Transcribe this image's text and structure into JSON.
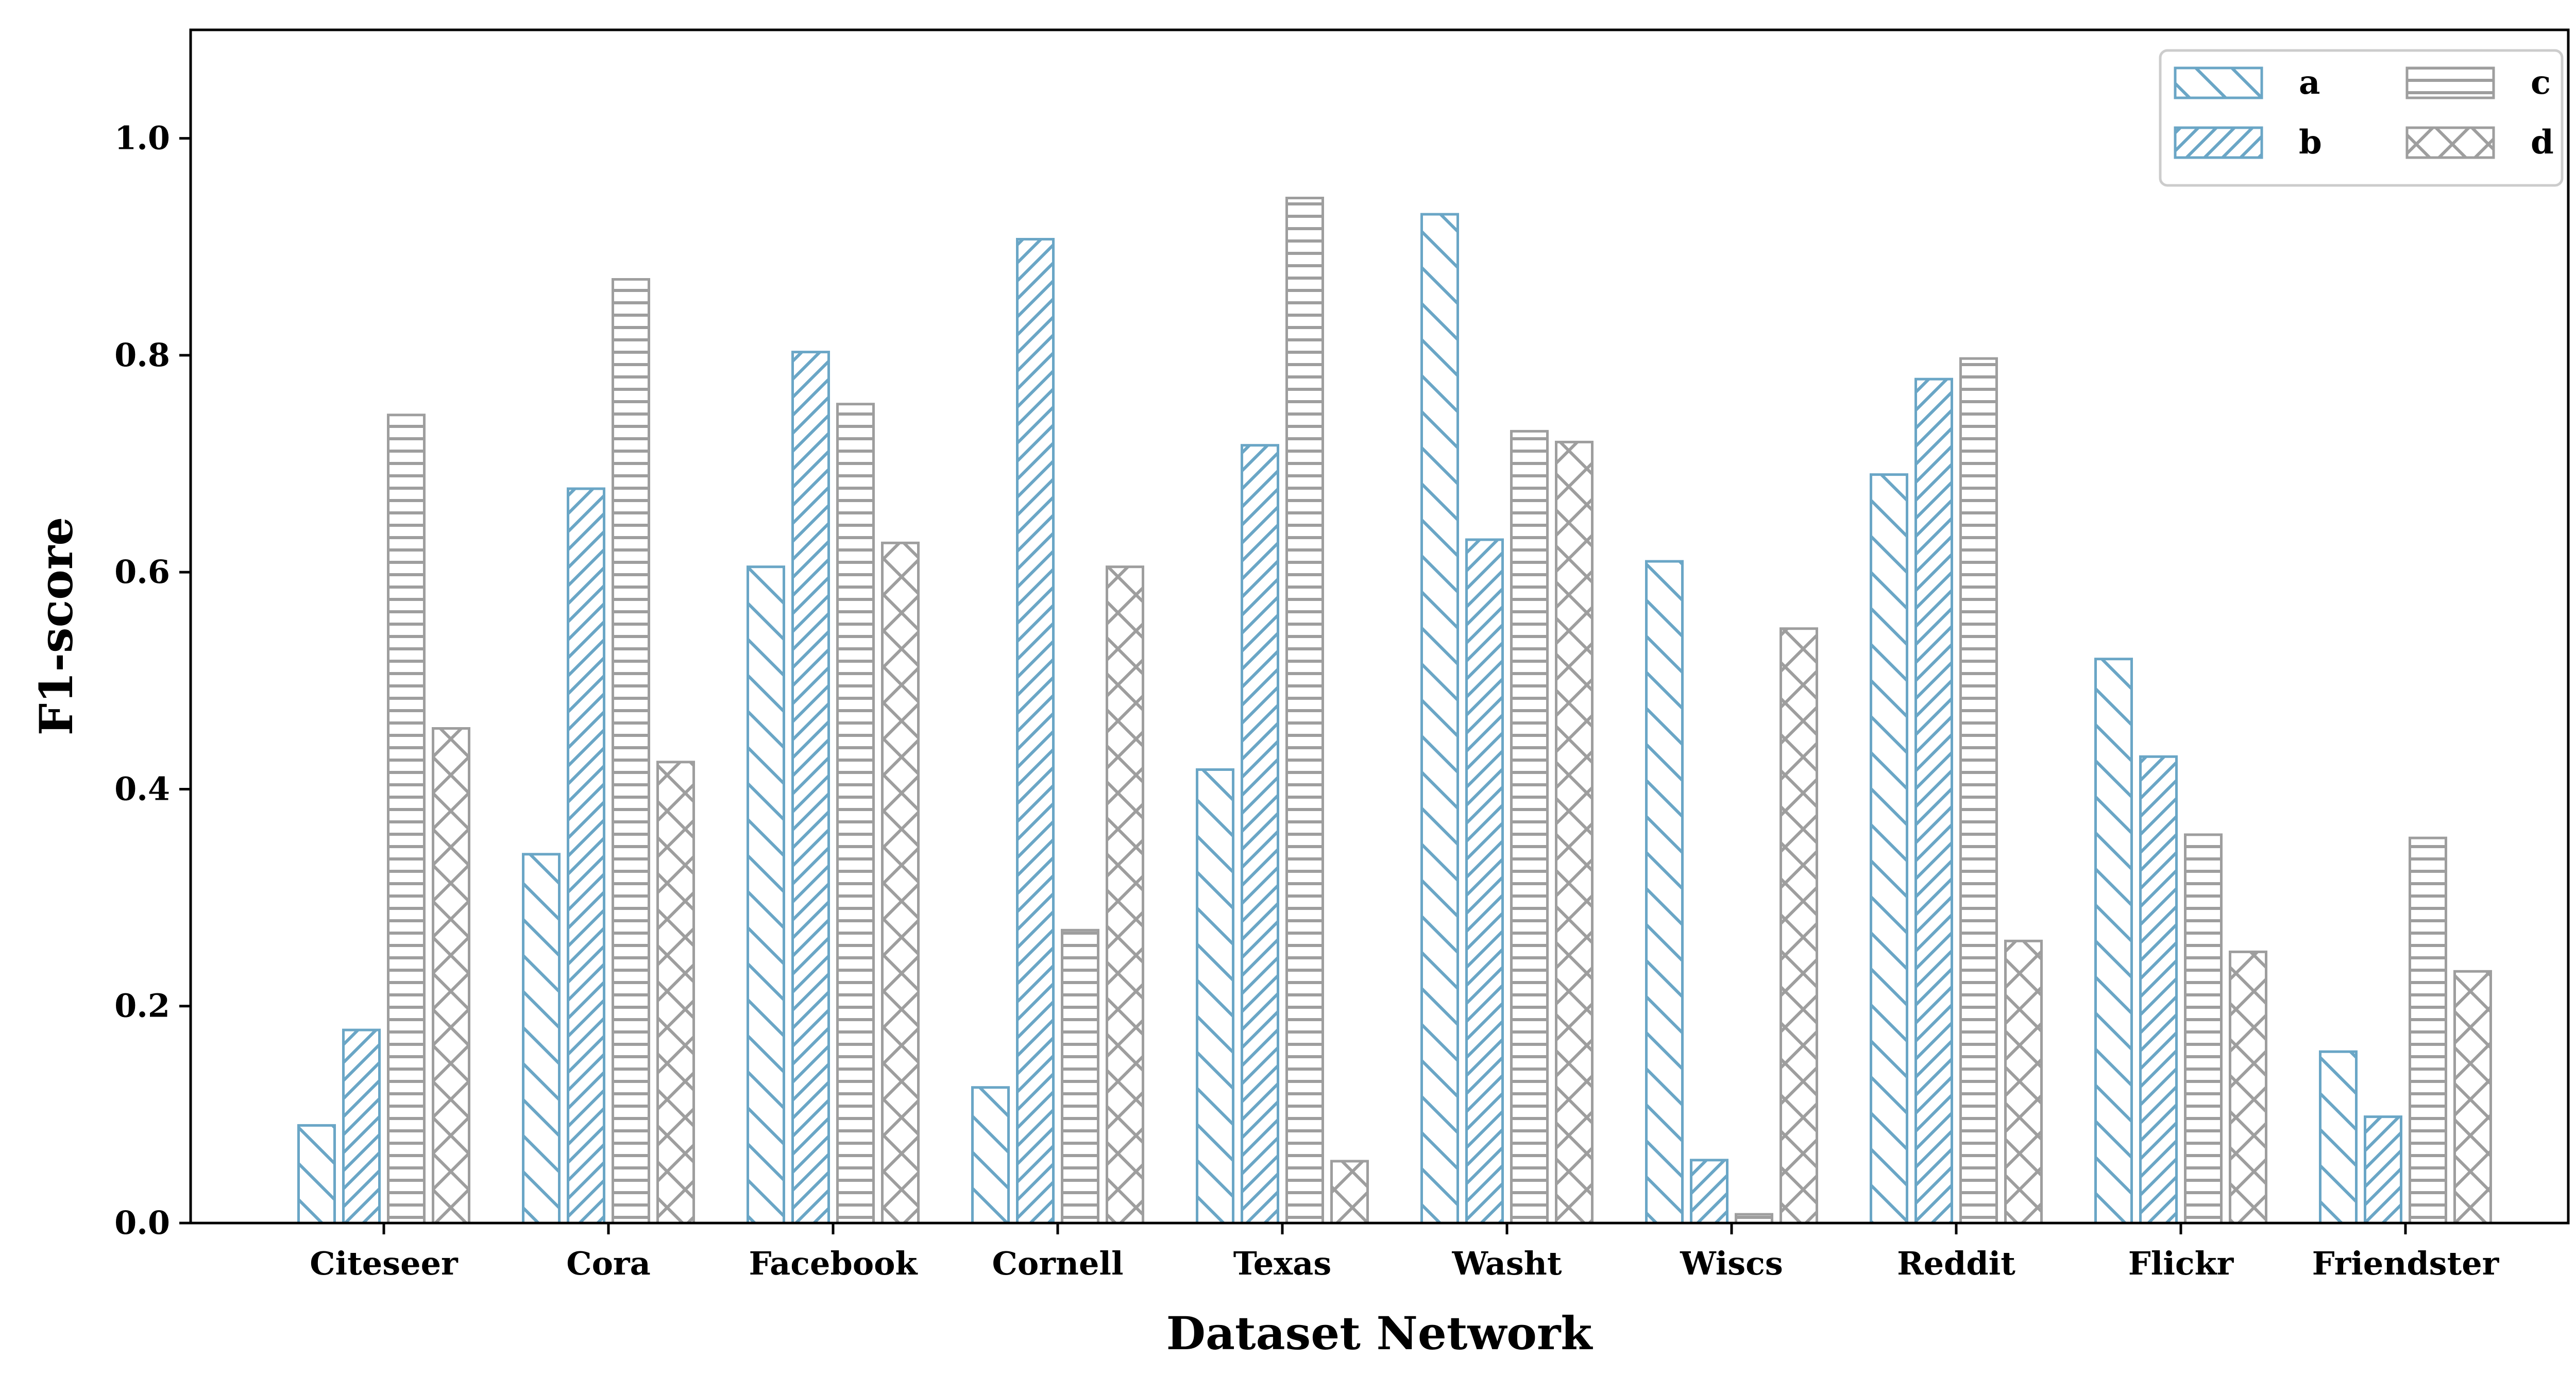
{
  "chart_data": {
    "type": "bar",
    "title": "",
    "xlabel": "Dataset Network",
    "ylabel": "F1-score",
    "ylim": [
      0,
      1.1
    ],
    "yticks": [
      "0.0",
      "0.2",
      "0.4",
      "0.6",
      "0.8",
      "1.0"
    ],
    "categories": [
      "Citeseer",
      "Cora",
      "Facebook",
      "Cornell",
      "Texas",
      "Washt",
      "Wiscs",
      "Reddit",
      "Flickr",
      "Friendster"
    ],
    "series": [
      {
        "name": "a",
        "hatch": "backslash",
        "color": "#6aa6c6",
        "values": [
          0.09,
          0.34,
          0.605,
          0.125,
          0.418,
          0.93,
          0.61,
          0.69,
          0.52,
          0.158
        ]
      },
      {
        "name": "b",
        "hatch": "slash",
        "color": "#6aa6c6",
        "values": [
          0.178,
          0.677,
          0.803,
          0.907,
          0.717,
          0.63,
          0.058,
          0.778,
          0.43,
          0.098
        ]
      },
      {
        "name": "c",
        "hatch": "horizontal",
        "color": "#9e9e9e",
        "values": [
          0.745,
          0.87,
          0.755,
          0.27,
          0.945,
          0.73,
          0.008,
          0.797,
          0.358,
          0.355
        ]
      },
      {
        "name": "d",
        "hatch": "cross",
        "color": "#9e9e9e",
        "values": [
          0.456,
          0.425,
          0.627,
          0.605,
          0.057,
          0.72,
          0.548,
          0.26,
          0.25,
          0.232
        ]
      }
    ],
    "legend": {
      "location": "top-right",
      "columns": 2
    },
    "grid": false
  }
}
